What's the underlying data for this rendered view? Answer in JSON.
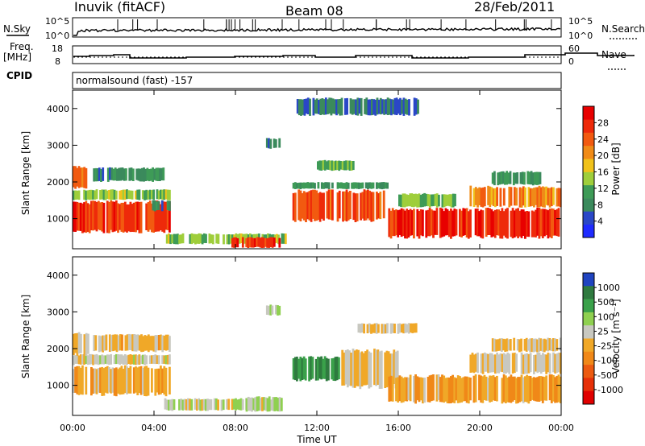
{
  "header": {
    "station": "Inuvik (fitACF)",
    "beam": "Beam 08",
    "date": "28/Feb/2011"
  },
  "strip_labels": {
    "nsky": "N.Sky",
    "nsky_top": "10^5",
    "nsky_bottom": "10^0",
    "nsearch": "N.Search",
    "nsearch_top": "10^5",
    "nsearch_bottom": "10^0",
    "freq_line1": "Freq.",
    "freq_line2": "[MHz]",
    "freq_top": "18",
    "freq_bottom": "8",
    "nave": "Nave",
    "nave_top": "60",
    "nave_bottom": "0",
    "cpid": "CPID",
    "cpid_text": "normalsound (fast) -157"
  },
  "colors": {
    "power_scale": [
      "#1f2bff",
      "#2a47c7",
      "#3b8a5c",
      "#3e9b57",
      "#9fce3b",
      "#f0c21b",
      "#f08b18",
      "#f25a10",
      "#ee2a0a",
      "#e80000"
    ],
    "velocity_scale": [
      "#2044c0",
      "#2f7a3f",
      "#3aa14a",
      "#8fd050",
      "#c8c8c0",
      "#f0a828",
      "#f08818",
      "#ec5a10",
      "#e63008",
      "#e00000"
    ]
  },
  "chart_data": [
    {
      "type": "heatmap",
      "title": "",
      "xlabel": "",
      "ylabel": "Slant Range [km]",
      "x_ticks": [
        "00:00",
        "04:00",
        "08:00",
        "12:00",
        "16:00",
        "20:00",
        "00:00"
      ],
      "y_ticks": [
        "1000",
        "2000",
        "3000",
        "4000"
      ],
      "xlim": [
        0,
        24
      ],
      "ylim": [
        180,
        4500
      ],
      "colorbar": {
        "label": "Power [dB]",
        "ticks": [
          "4",
          "8",
          "12",
          "16",
          "20",
          "24",
          "28"
        ],
        "range": [
          0,
          32
        ]
      },
      "regions": [
        {
          "t0": 0.0,
          "t1": 4.8,
          "r0": 600,
          "r1": 1500,
          "value": 27
        },
        {
          "t0": 0.0,
          "t1": 4.8,
          "r0": 1500,
          "r1": 1800,
          "value": 14
        },
        {
          "t0": 0.0,
          "t1": 0.7,
          "r0": 1800,
          "r1": 2450,
          "value": 25
        },
        {
          "t0": 1.0,
          "t1": 4.5,
          "r0": 2000,
          "r1": 2400,
          "value": 9
        },
        {
          "t0": 3.9,
          "t1": 4.8,
          "r0": 1200,
          "r1": 1500,
          "value": 8
        },
        {
          "t0": 4.5,
          "t1": 10.5,
          "r0": 300,
          "r1": 600,
          "value": 14
        },
        {
          "t0": 7.8,
          "t1": 10.2,
          "r0": 200,
          "r1": 500,
          "value": 27
        },
        {
          "t0": 9.5,
          "t1": 10.2,
          "r0": 2900,
          "r1": 3200,
          "value": 7
        },
        {
          "t0": 10.8,
          "t1": 15.5,
          "r0": 900,
          "r1": 1800,
          "value": 25
        },
        {
          "t0": 10.8,
          "t1": 15.5,
          "r0": 1800,
          "r1": 2000,
          "value": 10
        },
        {
          "t0": 12.0,
          "t1": 14.0,
          "r0": 2300,
          "r1": 2600,
          "value": 13
        },
        {
          "t0": 15.5,
          "t1": 24.0,
          "r0": 450,
          "r1": 1300,
          "value": 28
        },
        {
          "t0": 16.0,
          "t1": 19.0,
          "r0": 1300,
          "r1": 1700,
          "value": 13
        },
        {
          "t0": 19.5,
          "t1": 24.0,
          "r0": 1300,
          "r1": 1900,
          "value": 21
        },
        {
          "t0": 20.5,
          "t1": 23.0,
          "r0": 1900,
          "r1": 2300,
          "value": 10
        },
        {
          "t0": 11.0,
          "t1": 17.0,
          "r0": 3800,
          "r1": 4300,
          "value": 6
        }
      ]
    },
    {
      "type": "heatmap",
      "title": "",
      "xlabel": "Time UT",
      "ylabel": "Slant Range [km]",
      "x_ticks": [
        "00:00",
        "04:00",
        "08:00",
        "12:00",
        "16:00",
        "20:00",
        "00:00"
      ],
      "y_ticks": [
        "1000",
        "2000",
        "3000",
        "4000"
      ],
      "xlim": [
        0,
        24
      ],
      "ylim": [
        180,
        4500
      ],
      "colorbar": {
        "label": "Velocity [m s⁻¹]",
        "ticks": [
          "1000",
          "500",
          "100",
          "25",
          "-25",
          "-100",
          "-500",
          "-1000"
        ],
        "range": [
          -1000,
          1000
        ]
      },
      "regions": [
        {
          "t0": 0.0,
          "t1": 4.8,
          "r0": 700,
          "r1": 1550,
          "value": -120
        },
        {
          "t0": 0.0,
          "t1": 4.8,
          "r0": 1550,
          "r1": 1850,
          "value": 80
        },
        {
          "t0": 0.0,
          "t1": 0.8,
          "r0": 1800,
          "r1": 2450,
          "value": 0
        },
        {
          "t0": 1.0,
          "t1": 4.8,
          "r0": 1900,
          "r1": 2400,
          "value": -60
        },
        {
          "t0": 4.5,
          "t1": 10.3,
          "r0": 300,
          "r1": 650,
          "value": 100
        },
        {
          "t0": 8.5,
          "t1": 10.3,
          "r0": 280,
          "r1": 700,
          "value": 150
        },
        {
          "t0": 9.5,
          "t1": 10.2,
          "r0": 2900,
          "r1": 3200,
          "value": 120
        },
        {
          "t0": 10.8,
          "t1": 13.2,
          "r0": 1100,
          "r1": 1800,
          "value": 600
        },
        {
          "t0": 13.2,
          "t1": 16.0,
          "r0": 900,
          "r1": 2000,
          "value": 40
        },
        {
          "t0": 14.0,
          "t1": 17.0,
          "r0": 2400,
          "r1": 2700,
          "value": 0
        },
        {
          "t0": 15.5,
          "t1": 24.0,
          "r0": 500,
          "r1": 1300,
          "value": -150
        },
        {
          "t0": 19.5,
          "t1": 24.0,
          "r0": 1300,
          "r1": 1900,
          "value": 0
        },
        {
          "t0": 20.5,
          "t1": 24.0,
          "r0": 1900,
          "r1": 2300,
          "value": 0
        }
      ]
    }
  ]
}
